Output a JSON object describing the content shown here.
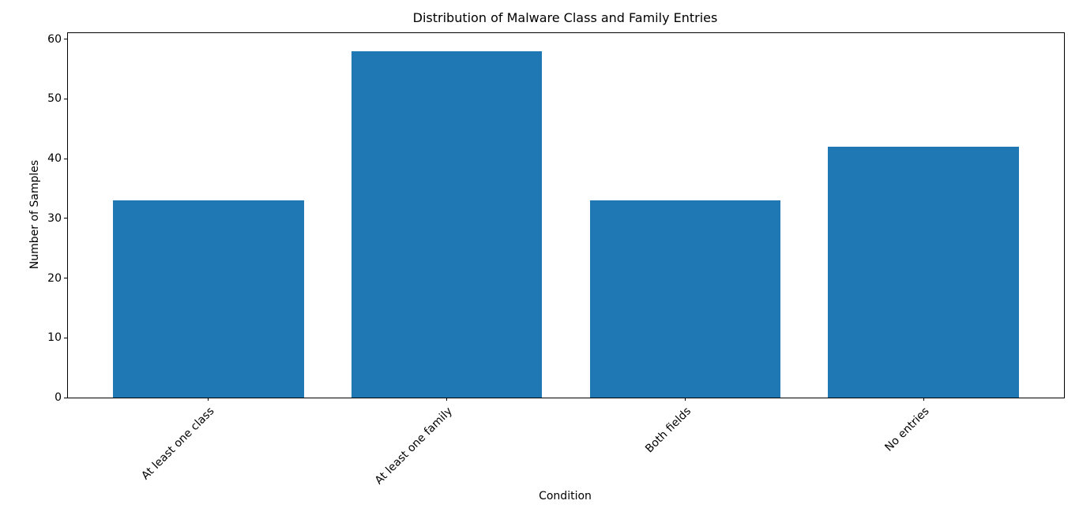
{
  "chart_data": {
    "type": "bar",
    "title": "Distribution of Malware Class and Family Entries",
    "xlabel": "Condition",
    "ylabel": "Number of Samples",
    "categories": [
      "At least one class",
      "At least one family",
      "Both fields",
      "No entries"
    ],
    "values": [
      33,
      58,
      33,
      42
    ],
    "yticks": [
      0,
      10,
      20,
      30,
      40,
      50,
      60
    ],
    "ylim": [
      0,
      61
    ],
    "bar_color": "#1f77b4",
    "axis_color": "#000000",
    "background_color": "#ffffff",
    "grid": false,
    "legend": "none",
    "xtick_rotation": 45
  }
}
